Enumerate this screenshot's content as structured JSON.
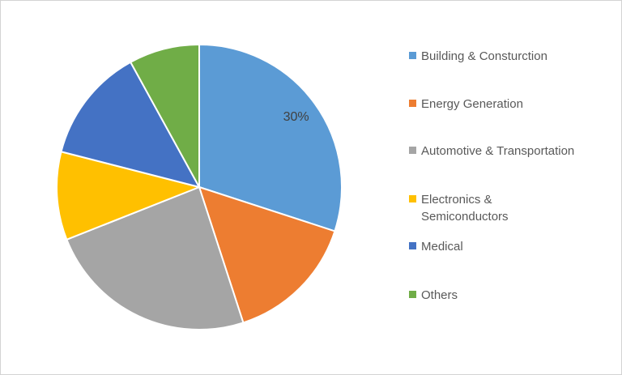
{
  "canvas": {
    "background_color": "#FFFFFF",
    "border_color": "#D3D3D3"
  },
  "chart_data": {
    "type": "pie",
    "title": "",
    "unit": "%",
    "direction": "clockwise",
    "start_angle_deg": 0,
    "legend_position": "right",
    "grid": "off",
    "separator_color": "#FFFFFF",
    "data_label_color": "#404040",
    "legend_text_color": "#595959",
    "categories": [
      "Building & Consturction",
      "Energy Generation",
      "Automotive & Transportation",
      "Electronics & Semiconductors",
      "Medical",
      "Others"
    ],
    "values": [
      30,
      15,
      24,
      10,
      13,
      8
    ],
    "slices": [
      {
        "name": "Building & Consturction",
        "value": 30,
        "color": "#5B9BD5",
        "data_label": "30%",
        "legend_lines": [
          "Building & Consturction"
        ]
      },
      {
        "name": "Energy Generation",
        "value": 15,
        "color": "#ED7D31",
        "data_label": "",
        "legend_lines": [
          "Energy Generation"
        ]
      },
      {
        "name": "Automotive & Transportation",
        "value": 24,
        "color": "#A5A5A5",
        "data_label": "",
        "legend_lines": [
          "Automotive & Transportation"
        ]
      },
      {
        "name": "Electronics & Semiconductors",
        "value": 10,
        "color": "#FFC000",
        "data_label": "",
        "legend_lines": [
          "Electronics &",
          "Semiconductors"
        ]
      },
      {
        "name": "Medical",
        "value": 13,
        "color": "#4472C4",
        "data_label": "",
        "legend_lines": [
          "Medical"
        ]
      },
      {
        "name": "Others",
        "value": 8,
        "color": "#70AD47",
        "data_label": "",
        "legend_lines": [
          "Others"
        ]
      }
    ]
  }
}
